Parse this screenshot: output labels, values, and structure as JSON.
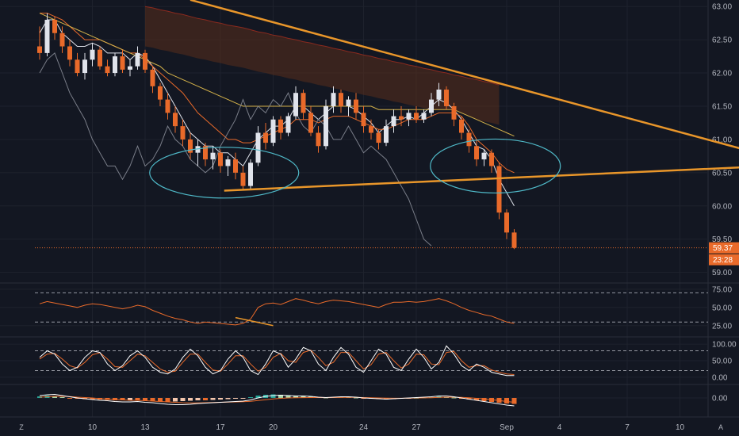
{
  "chart_data": {
    "type": "candlestick",
    "colors": {
      "up": "#e0e3eb",
      "down": "#e96a2a",
      "background": "#131722",
      "grid": "#1e222d",
      "trendline": "#e9962a",
      "ellipse": "#4fb9c8",
      "cloud": "#5a2e1c",
      "price_line": "#e96a2a",
      "badge": "#e96a2a"
    },
    "x_axis": {
      "labels": [
        "10",
        "13",
        "17",
        "20",
        "24",
        "27",
        "Sep",
        "4",
        "7",
        "10"
      ]
    },
    "price_panel": {
      "y_ticks": [
        "63.00",
        "62.50",
        "62.00",
        "61.50",
        "61.00",
        "60.50",
        "60.00",
        "59.50",
        "59.00"
      ],
      "ylim": [
        58.9,
        63.05
      ],
      "last_price": "59.37",
      "countdown": "23:28",
      "candles": [
        [
          62.4,
          62.7,
          62.2,
          62.3
        ],
        [
          62.3,
          62.9,
          62.25,
          62.8
        ],
        [
          62.8,
          62.85,
          62.5,
          62.6
        ],
        [
          62.6,
          62.7,
          62.3,
          62.4
        ],
        [
          62.4,
          62.5,
          62.1,
          62.2
        ],
        [
          62.2,
          62.3,
          61.95,
          62.0
        ],
        [
          62.0,
          62.3,
          61.9,
          62.2
        ],
        [
          62.2,
          62.45,
          62.1,
          62.35
        ],
        [
          62.35,
          62.4,
          62.05,
          62.1
        ],
        [
          62.1,
          62.2,
          61.95,
          62.0
        ],
        [
          62.0,
          62.3,
          61.95,
          62.25
        ],
        [
          62.25,
          62.35,
          62.0,
          62.05
        ],
        [
          62.05,
          62.2,
          61.95,
          62.1
        ],
        [
          62.1,
          62.4,
          62.05,
          62.3
        ],
        [
          62.3,
          62.35,
          62.0,
          62.05
        ],
        [
          62.05,
          62.1,
          61.7,
          61.8
        ],
        [
          61.8,
          61.85,
          61.5,
          61.6
        ],
        [
          61.6,
          61.7,
          61.3,
          61.4
        ],
        [
          61.4,
          61.5,
          61.1,
          61.2
        ],
        [
          61.2,
          61.3,
          60.9,
          61.0
        ],
        [
          61.0,
          61.1,
          60.7,
          60.8
        ],
        [
          60.8,
          61.0,
          60.6,
          60.9
        ],
        [
          60.9,
          60.95,
          60.6,
          60.7
        ],
        [
          60.7,
          60.9,
          60.55,
          60.8
        ],
        [
          60.8,
          60.85,
          60.5,
          60.6
        ],
        [
          60.6,
          60.75,
          60.45,
          60.7
        ],
        [
          60.7,
          60.8,
          60.4,
          60.5
        ],
        [
          60.5,
          60.6,
          60.25,
          60.3
        ],
        [
          60.3,
          60.7,
          60.25,
          60.65
        ],
        [
          60.65,
          61.2,
          60.6,
          61.1
        ],
        [
          61.1,
          61.25,
          60.85,
          60.95
        ],
        [
          60.95,
          61.35,
          60.9,
          61.3
        ],
        [
          61.3,
          61.35,
          61.0,
          61.1
        ],
        [
          61.1,
          61.4,
          61.05,
          61.35
        ],
        [
          61.35,
          61.8,
          61.3,
          61.7
        ],
        [
          61.7,
          61.75,
          61.3,
          61.4
        ],
        [
          61.4,
          61.5,
          61.05,
          61.1
        ],
        [
          61.1,
          61.2,
          60.8,
          60.9
        ],
        [
          60.9,
          61.6,
          60.85,
          61.5
        ],
        [
          61.5,
          61.8,
          61.4,
          61.7
        ],
        [
          61.7,
          61.75,
          61.4,
          61.5
        ],
        [
          61.5,
          61.65,
          61.35,
          61.6
        ],
        [
          61.6,
          61.7,
          61.3,
          61.4
        ],
        [
          61.4,
          61.5,
          61.1,
          61.2
        ],
        [
          61.2,
          61.3,
          61.0,
          61.1
        ],
        [
          61.1,
          61.15,
          60.85,
          60.95
        ],
        [
          60.95,
          61.3,
          60.9,
          61.2
        ],
        [
          61.2,
          61.45,
          61.1,
          61.35
        ],
        [
          61.35,
          61.5,
          61.2,
          61.3
        ],
        [
          61.3,
          61.45,
          61.2,
          61.4
        ],
        [
          61.4,
          61.5,
          61.25,
          61.3
        ],
        [
          61.3,
          61.45,
          61.25,
          61.4
        ],
        [
          61.4,
          61.7,
          61.35,
          61.6
        ],
        [
          61.6,
          61.85,
          61.5,
          61.75
        ],
        [
          61.75,
          61.8,
          61.45,
          61.5
        ],
        [
          61.5,
          61.55,
          61.2,
          61.3
        ],
        [
          61.3,
          61.35,
          61.0,
          61.1
        ],
        [
          61.1,
          61.15,
          60.8,
          60.9
        ],
        [
          60.9,
          61.0,
          60.6,
          60.7
        ],
        [
          60.7,
          60.85,
          60.6,
          60.8
        ],
        [
          60.8,
          60.85,
          60.5,
          60.6
        ],
        [
          60.6,
          60.65,
          59.8,
          59.9
        ],
        [
          59.9,
          59.95,
          59.5,
          59.6
        ],
        [
          59.6,
          59.65,
          59.35,
          59.37
        ]
      ],
      "overlay_lines": [
        {
          "color": "#e0e3eb",
          "values": [
            62.6,
            62.8,
            62.8,
            62.6,
            62.5,
            62.4,
            62.4,
            62.45,
            62.4,
            62.3,
            62.3,
            62.3,
            62.2,
            62.3,
            62.25,
            62.1,
            61.9,
            61.7,
            61.5,
            61.3,
            61.1,
            61.0,
            60.9,
            60.9,
            60.8,
            60.8,
            60.7,
            60.6,
            60.8,
            61.0,
            61.1,
            61.2,
            61.2,
            61.3,
            61.5,
            61.5,
            61.4,
            61.3,
            61.4,
            61.5,
            61.5,
            61.5,
            61.45,
            61.35,
            61.25,
            61.1,
            61.2,
            61.3,
            61.3,
            61.35,
            61.3,
            61.4,
            61.5,
            61.6,
            61.55,
            61.45,
            61.3,
            61.1,
            60.9,
            60.85,
            60.7,
            60.4,
            60.2,
            60.0
          ]
        },
        {
          "color": "#e96a2a",
          "values": [
            62.9,
            62.9,
            62.85,
            62.8,
            62.7,
            62.6,
            62.5,
            62.5,
            62.5,
            62.45,
            62.4,
            62.35,
            62.3,
            62.3,
            62.2,
            62.1,
            62.0,
            61.9,
            61.8,
            61.7,
            61.55,
            61.4,
            61.3,
            61.2,
            61.1,
            61.0,
            61.0,
            60.95,
            60.95,
            61.0,
            61.05,
            61.1,
            61.15,
            61.2,
            61.3,
            61.3,
            61.3,
            61.25,
            61.3,
            61.35,
            61.35,
            61.35,
            61.3,
            61.25,
            61.2,
            61.15,
            61.15,
            61.2,
            61.25,
            61.3,
            61.3,
            61.3,
            61.35,
            61.4,
            61.4,
            61.4,
            61.35,
            61.2,
            61.0,
            60.9,
            60.8,
            60.65,
            60.55,
            60.5
          ]
        },
        {
          "color": "#d4b24a",
          "values": [
            62.9,
            62.85,
            62.8,
            62.75,
            62.7,
            62.65,
            62.6,
            62.55,
            62.5,
            62.45,
            62.4,
            62.35,
            62.3,
            62.25,
            62.2,
            62.15,
            62.1,
            62.0,
            61.95,
            61.9,
            61.85,
            61.8,
            61.75,
            61.7,
            61.65,
            61.6,
            61.55,
            61.5,
            61.5,
            61.5,
            61.5,
            61.5,
            61.5,
            61.5,
            61.5,
            61.5,
            61.5,
            61.5,
            61.5,
            61.5,
            61.5,
            61.5,
            61.5,
            61.5,
            61.5,
            61.45,
            61.45,
            61.45,
            61.45,
            61.45,
            61.45,
            61.45,
            61.45,
            61.45,
            61.45,
            61.45,
            61.4,
            61.35,
            61.3,
            61.25,
            61.2,
            61.15,
            61.1,
            61.05
          ]
        },
        {
          "color": "#7a7e89",
          "values": [
            62.0,
            62.2,
            62.3,
            62.0,
            61.7,
            61.5,
            61.3,
            61.0,
            60.8,
            60.6,
            60.6,
            60.4,
            60.6,
            60.9,
            60.6,
            60.7,
            60.9,
            61.2,
            61.0,
            60.9,
            60.7,
            60.6,
            60.5,
            60.6,
            60.9,
            61.1,
            61.3,
            61.6,
            61.3,
            61.5,
            61.4,
            61.6,
            61.5,
            61.7,
            61.4,
            61.2,
            61.1,
            61.3,
            61.2,
            61.0,
            61.0,
            61.2,
            61.0,
            60.8,
            60.9,
            60.8,
            60.7,
            60.5,
            60.3,
            60.1,
            59.8,
            59.5,
            59.4
          ]
        },
        {
          "color": "#8b2a1e",
          "values": [
            63.0,
            62.98,
            62.95,
            62.93,
            62.9,
            62.88,
            62.85,
            62.82,
            62.8,
            62.77,
            62.75,
            62.72,
            62.7,
            62.68,
            62.65,
            62.62,
            62.6,
            62.57,
            62.55,
            62.52,
            62.5,
            62.47,
            62.45,
            62.42,
            62.4,
            62.37,
            62.35,
            62.32,
            62.3,
            62.27,
            62.25,
            62.22,
            62.2,
            62.17,
            62.15,
            62.12,
            62.1,
            62.07,
            62.05,
            62.02,
            62.0,
            61.97,
            61.95,
            61.92,
            61.9,
            61.87,
            61.85,
            61.82
          ]
        }
      ],
      "trendlines": [
        {
          "x": [
            20.0,
            101.0
          ],
          "y": [
            63.1,
            60.62
          ]
        },
        {
          "x": [
            24.5,
            101.0
          ],
          "y": [
            60.23,
            60.62
          ]
        }
      ]
    },
    "rsi_panel": {
      "y_ticks": [
        "75.00",
        "50.00",
        "25.00"
      ],
      "ylim": [
        15,
        78
      ],
      "bands": [
        70,
        30
      ],
      "values": [
        55,
        58,
        56,
        54,
        52,
        50,
        53,
        55,
        54,
        52,
        50,
        48,
        50,
        53,
        51,
        46,
        42,
        38,
        35,
        33,
        30,
        28,
        30,
        29,
        28,
        27,
        26,
        28,
        34,
        50,
        55,
        56,
        54,
        58,
        62,
        60,
        57,
        55,
        58,
        60,
        59,
        58,
        56,
        54,
        52,
        50,
        54,
        57,
        57,
        58,
        57,
        58,
        60,
        62,
        59,
        55,
        50,
        46,
        43,
        40,
        38,
        34,
        30,
        28
      ]
    },
    "stoch_panel": {
      "y_ticks": [
        "100.00",
        "50.00",
        "0.00"
      ],
      "ylim": [
        -10,
        110
      ],
      "bands": [
        80,
        20
      ],
      "k": [
        60,
        80,
        70,
        40,
        20,
        30,
        60,
        80,
        75,
        40,
        20,
        35,
        65,
        80,
        60,
        30,
        15,
        10,
        25,
        60,
        85,
        65,
        30,
        10,
        20,
        55,
        80,
        60,
        20,
        8,
        40,
        80,
        70,
        30,
        55,
        90,
        80,
        40,
        20,
        60,
        90,
        70,
        30,
        15,
        50,
        85,
        70,
        30,
        20,
        55,
        85,
        60,
        25,
        45,
        95,
        70,
        35,
        20,
        40,
        30,
        15,
        10,
        5,
        5
      ],
      "d": [
        55,
        70,
        72,
        55,
        35,
        28,
        45,
        68,
        74,
        55,
        32,
        30,
        50,
        70,
        65,
        45,
        25,
        15,
        18,
        45,
        70,
        70,
        45,
        22,
        18,
        40,
        65,
        65,
        40,
        18,
        30,
        60,
        72,
        50,
        45,
        75,
        82,
        60,
        35,
        45,
        75,
        75,
        50,
        25,
        38,
        70,
        75,
        50,
        28,
        40,
        70,
        68,
        40,
        38,
        75,
        78,
        50,
        30,
        35,
        35,
        22,
        15,
        10,
        8
      ]
    },
    "macd_panel": {
      "y_ticks": [
        "0.00"
      ],
      "ylim": [
        -1.2,
        1.2
      ],
      "hist_colors": {
        "up": "#26a69a",
        "up_fade": "#a5d6a7",
        "down": "#e96a2a",
        "down_fade": "#f5c7ad"
      },
      "histogram": [
        0.2,
        0.3,
        0.25,
        0.1,
        -0.05,
        -0.1,
        -0.15,
        -0.2,
        -0.2,
        -0.25,
        -0.3,
        -0.3,
        -0.25,
        -0.3,
        -0.35,
        -0.4,
        -0.45,
        -0.5,
        -0.45,
        -0.4,
        -0.35,
        -0.3,
        -0.3,
        -0.25,
        -0.2,
        -0.15,
        -0.1,
        -0.05,
        0.1,
        0.3,
        0.4,
        0.45,
        0.4,
        0.35,
        0.3,
        0.25,
        0.2,
        0.1,
        0.05,
        0.1,
        0.15,
        0.1,
        0.05,
        -0.05,
        -0.1,
        -0.15,
        -0.2,
        -0.15,
        -0.1,
        -0.05,
        0.0,
        0.05,
        0.1,
        0.2,
        0.15,
        0.05,
        -0.1,
        -0.2,
        -0.3,
        -0.4,
        -0.5,
        -0.6,
        -0.7,
        -0.75
      ],
      "macd": [
        0.3,
        0.4,
        0.45,
        0.3,
        0.15,
        0.0,
        -0.1,
        -0.2,
        -0.3,
        -0.35,
        -0.45,
        -0.5,
        -0.5,
        -0.45,
        -0.55,
        -0.6,
        -0.7,
        -0.8,
        -0.85,
        -0.85,
        -0.8,
        -0.7,
        -0.65,
        -0.6,
        -0.55,
        -0.5,
        -0.45,
        -0.4,
        -0.25,
        0.0,
        0.2,
        0.3,
        0.35,
        0.3,
        0.25,
        0.25,
        0.2,
        0.1,
        0.05,
        0.1,
        0.15,
        0.15,
        0.1,
        0.0,
        -0.05,
        -0.1,
        -0.15,
        -0.1,
        -0.05,
        0.0,
        0.05,
        0.1,
        0.15,
        0.25,
        0.25,
        0.15,
        0.0,
        -0.15,
        -0.3,
        -0.45,
        -0.6,
        -0.75,
        -0.9,
        -1.0
      ],
      "signal": [
        0.1,
        0.15,
        0.2,
        0.2,
        0.18,
        0.1,
        0.05,
        0.0,
        -0.1,
        -0.15,
        -0.2,
        -0.25,
        -0.3,
        -0.3,
        -0.35,
        -0.4,
        -0.45,
        -0.5,
        -0.55,
        -0.6,
        -0.62,
        -0.62,
        -0.6,
        -0.58,
        -0.55,
        -0.52,
        -0.5,
        -0.47,
        -0.42,
        -0.33,
        -0.22,
        -0.12,
        -0.05,
        0.0,
        0.02,
        0.04,
        0.05,
        0.05,
        0.04,
        0.05,
        0.06,
        0.07,
        0.07,
        0.05,
        0.03,
        0.0,
        -0.03,
        -0.04,
        -0.04,
        -0.03,
        -0.01,
        0.01,
        0.03,
        0.07,
        0.1,
        0.1,
        0.07,
        0.02,
        -0.05,
        -0.13,
        -0.22,
        -0.33,
        -0.45,
        -0.55
      ]
    },
    "legend": "none",
    "grid": true
  },
  "footer": {
    "left_label": "Z",
    "right_label": "A"
  }
}
